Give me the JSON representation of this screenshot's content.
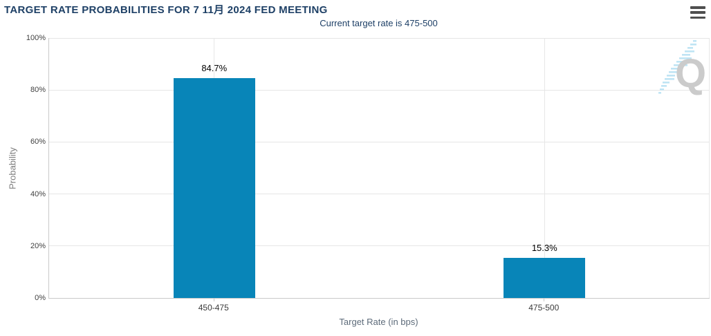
{
  "header": {
    "title": "TARGET RATE PROBABILITIES FOR 7 11月 2024 FED MEETING",
    "menu_icon": "hamburger-menu"
  },
  "watermark": {
    "letter": "Q"
  },
  "colors": {
    "bar": "#0885b8",
    "title": "#1e4066",
    "grid": "#e6e6e6",
    "axis": "#c9c9c9",
    "watermark_gray": "#cbcbcb",
    "watermark_blue": "#bfe4f4"
  },
  "chart_data": {
    "type": "bar",
    "title": "TARGET RATE PROBABILITIES FOR 7 11月 2024 FED MEETING",
    "subtitle": "Current target rate is 475-500",
    "categories": [
      "450-475",
      "475-500"
    ],
    "values": [
      84.7,
      15.3
    ],
    "data_labels": [
      "84.7%",
      "15.3%"
    ],
    "xlabel": "Target Rate (in bps)",
    "ylabel": "Probability",
    "ylim": [
      0,
      100
    ],
    "yticks": [
      0,
      20,
      40,
      60,
      80,
      100
    ],
    "ytick_labels": [
      "0%",
      "20%",
      "40%",
      "60%",
      "80%",
      "100%"
    ],
    "grid": true,
    "legend": false,
    "bar_color": "#0885b8"
  }
}
